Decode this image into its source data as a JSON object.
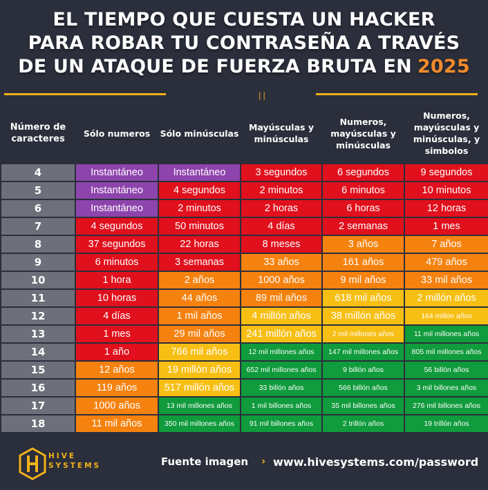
{
  "title": {
    "line1": "EL TIEMPO QUE CUESTA UN HACKER",
    "line2": "PARA ROBAR TU CONTRASEÑA A TRAVÉS",
    "line3": "DE UN ATAQUE DE FUERZA BRUTA EN",
    "year": "2025"
  },
  "colors": {
    "background": "#2b2e3b",
    "accent": "#f2b21a",
    "year": "#f28a2a",
    "purple": "#8e44ad",
    "red": "#e0101c",
    "orange": "#f5820f",
    "yellow": "#f7bf14",
    "green": "#109b3c",
    "row_label": "#6d6f7a"
  },
  "table": {
    "headers": [
      "Número de caracteres",
      "Sólo numeros",
      "Sólo minúsculas",
      "Mayúsculas y minúsculas",
      "Numeros, mayúsculas y minúsculas",
      "Numeros, mayúsculas y minúsculas, y simbolos"
    ],
    "rows": [
      {
        "chars": "4",
        "cells": [
          {
            "text": "Instantáneo",
            "color": "purple"
          },
          {
            "text": "Instantáneo",
            "color": "purple"
          },
          {
            "text": "3 segundos",
            "color": "red"
          },
          {
            "text": "6 segundos",
            "color": "red"
          },
          {
            "text": "9 segundos",
            "color": "red"
          }
        ]
      },
      {
        "chars": "5",
        "cells": [
          {
            "text": "Instantáneo",
            "color": "purple"
          },
          {
            "text": "4 segundos",
            "color": "red"
          },
          {
            "text": "2 minutos",
            "color": "red"
          },
          {
            "text": "6 minutos",
            "color": "red"
          },
          {
            "text": "10 minutos",
            "color": "red"
          }
        ]
      },
      {
        "chars": "6",
        "cells": [
          {
            "text": "Instantáneo",
            "color": "purple"
          },
          {
            "text": "2 minutos",
            "color": "red"
          },
          {
            "text": "2 horas",
            "color": "red"
          },
          {
            "text": "6 horas",
            "color": "red"
          },
          {
            "text": "12 horas",
            "color": "red"
          }
        ]
      },
      {
        "chars": "7",
        "cells": [
          {
            "text": "4 segundos",
            "color": "red"
          },
          {
            "text": "50 minutos",
            "color": "red"
          },
          {
            "text": "4 días",
            "color": "red"
          },
          {
            "text": "2 semanas",
            "color": "red"
          },
          {
            "text": "1 mes",
            "color": "red"
          }
        ]
      },
      {
        "chars": "8",
        "cells": [
          {
            "text": "37 segundos",
            "color": "red"
          },
          {
            "text": "22 horas",
            "color": "red"
          },
          {
            "text": "8 meses",
            "color": "red"
          },
          {
            "text": "3 años",
            "color": "orange"
          },
          {
            "text": "7 años",
            "color": "orange"
          }
        ]
      },
      {
        "chars": "9",
        "cells": [
          {
            "text": "6 minutos",
            "color": "red"
          },
          {
            "text": "3 semanas",
            "color": "red"
          },
          {
            "text": "33 años",
            "color": "orange"
          },
          {
            "text": "161 años",
            "color": "orange"
          },
          {
            "text": "479 años",
            "color": "orange"
          }
        ]
      },
      {
        "chars": "10",
        "cells": [
          {
            "text": "1 hora",
            "color": "red"
          },
          {
            "text": "2 años",
            "color": "orange"
          },
          {
            "text": "1000 años",
            "color": "orange"
          },
          {
            "text": "9 mil años",
            "color": "orange"
          },
          {
            "text": "33 mil años",
            "color": "orange"
          }
        ]
      },
      {
        "chars": "11",
        "cells": [
          {
            "text": "10 horas",
            "color": "red"
          },
          {
            "text": "44 años",
            "color": "orange"
          },
          {
            "text": "89 mil años",
            "color": "orange"
          },
          {
            "text": "618 mil años",
            "color": "yellow"
          },
          {
            "text": "2 millón años",
            "color": "yellow"
          }
        ]
      },
      {
        "chars": "12",
        "cells": [
          {
            "text": "4 días",
            "color": "red"
          },
          {
            "text": "1 mil años",
            "color": "orange"
          },
          {
            "text": "4 millón años",
            "color": "yellow"
          },
          {
            "text": "38 millón años",
            "color": "yellow"
          },
          {
            "text": "164 millón años",
            "color": "yellow",
            "small": true
          }
        ]
      },
      {
        "chars": "13",
        "cells": [
          {
            "text": "1 mes",
            "color": "red"
          },
          {
            "text": "29 mil años",
            "color": "orange"
          },
          {
            "text": "241 millón años",
            "color": "yellow"
          },
          {
            "text": "2 mil millones años",
            "color": "yellow",
            "small": true
          },
          {
            "text": "11 mil millones años",
            "color": "green",
            "small": true
          }
        ]
      },
      {
        "chars": "14",
        "cells": [
          {
            "text": "1 año",
            "color": "red"
          },
          {
            "text": "766 mil años",
            "color": "yellow"
          },
          {
            "text": "12 mil millones años",
            "color": "green",
            "small": true
          },
          {
            "text": "147 mil millones años",
            "color": "green",
            "small": true
          },
          {
            "text": "805 mil millones años",
            "color": "green",
            "small": true
          }
        ]
      },
      {
        "chars": "15",
        "cells": [
          {
            "text": "12 años",
            "color": "orange"
          },
          {
            "text": "19 millón años",
            "color": "yellow"
          },
          {
            "text": "652 mil millones años",
            "color": "green",
            "small": true
          },
          {
            "text": "9 billón años",
            "color": "green",
            "small": true
          },
          {
            "text": "56 billón años",
            "color": "green",
            "small": true
          }
        ]
      },
      {
        "chars": "16",
        "cells": [
          {
            "text": "119 años",
            "color": "orange"
          },
          {
            "text": "517 millón años",
            "color": "yellow"
          },
          {
            "text": "33 billón años",
            "color": "green",
            "small": true
          },
          {
            "text": "566 billón años",
            "color": "green",
            "small": true
          },
          {
            "text": "3 mil billones años",
            "color": "green",
            "small": true
          }
        ]
      },
      {
        "chars": "17",
        "cells": [
          {
            "text": "1000 años",
            "color": "orange"
          },
          {
            "text": "13 mil millones años",
            "color": "green",
            "small": true
          },
          {
            "text": "1 mil billones años",
            "color": "green",
            "small": true
          },
          {
            "text": "35 mil billones años",
            "color": "green",
            "small": true
          },
          {
            "text": "276 mil billones años",
            "color": "green",
            "small": true
          }
        ]
      },
      {
        "chars": "18",
        "cells": [
          {
            "text": "11 mil años",
            "color": "orange"
          },
          {
            "text": "350 mil millones años",
            "color": "green",
            "small": true
          },
          {
            "text": "91 mil billones años",
            "color": "green",
            "small": true
          },
          {
            "text": "2 trillón años",
            "color": "green",
            "small": true
          },
          {
            "text": "19 trillón años",
            "color": "green",
            "small": true
          }
        ]
      }
    ]
  },
  "footer": {
    "logo_line1": "HIVE",
    "logo_line2": "SYSTEMS",
    "source_label": "Fuente imagen",
    "source_url": "www.hivesystems.com/password"
  }
}
